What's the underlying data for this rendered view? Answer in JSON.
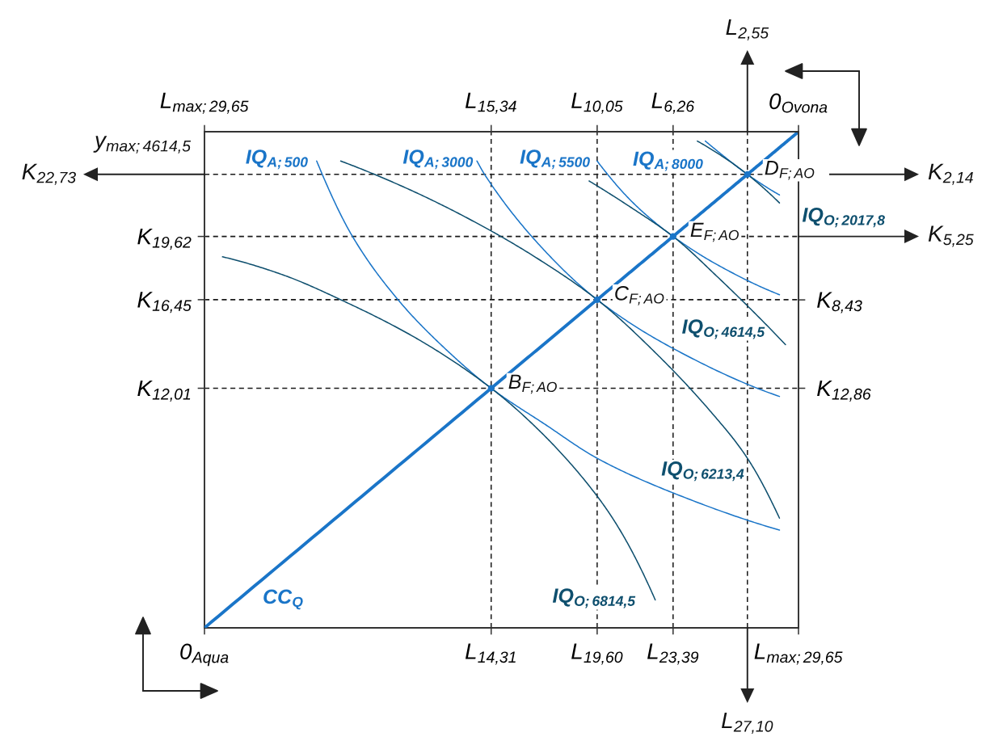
{
  "chart_data": {
    "type": "line",
    "ylabel": "y$_{max;4614,5}$",
    "xlim": [
      0,
      29.65
    ],
    "ylim": [
      0,
      24.87
    ],
    "x2lim": [
      29.65,
      0
    ],
    "y2lim": [
      24.87,
      0
    ],
    "xticks": [
      {
        "value": 0,
        "label": "0$_{Aqua}$"
      },
      {
        "value": 14.31,
        "label": "L$_{14,31}$"
      },
      {
        "value": 19.6,
        "label": "L$_{19,60}$"
      },
      {
        "value": 23.39,
        "label": "L$_{23,39}$"
      },
      {
        "value": 29.65,
        "label": "L$_{max;29,65}$"
      }
    ],
    "x2ticks": [
      {
        "value": 29.65,
        "label": "L$_{max;29,65}$"
      },
      {
        "value": 15.34,
        "label": "L$_{15,34}$"
      },
      {
        "value": 10.05,
        "label": "L$_{10,05}$"
      },
      {
        "value": 6.26,
        "label": "L$_{6,26}$"
      },
      {
        "value": 0,
        "label": "0$_{Ovona}$"
      }
    ],
    "yticks": [
      {
        "value": 12.01,
        "label": "K$_{12,01}$"
      },
      {
        "value": 16.45,
        "label": "K$_{16,45}$"
      },
      {
        "value": 19.62,
        "label": "K$_{19,62}$"
      }
    ],
    "y2ticks": [
      {
        "value": 12.86,
        "label": "K$_{12,86}$"
      },
      {
        "value": 8.43,
        "label": "K$_{8,43}$"
      }
    ],
    "series": [
      {
        "name": "CC$_{Q}$",
        "color": "#1a75c8",
        "x": [
          0,
          14.31,
          19.6,
          23.39,
          27.1,
          29.65
        ],
        "values": [
          0,
          12.01,
          16.45,
          19.62,
          22.73,
          24.87
        ]
      },
      {
        "type": "scatter",
        "color": "#1a75c8",
        "marker": "circle",
        "x": [
          14.31,
          19.6,
          23.39,
          27.1
        ],
        "values": [
          12.01,
          16.45,
          19.62,
          22.73
        ]
      },
      {
        "name": "IQ$_{A;500}$",
        "color": "#1a75c8",
        "x": [
          5.6,
          7.4,
          9.7,
          11.9,
          14.31,
          17.0,
          19.6,
          23.3,
          28.7
        ],
        "values": [
          23.4,
          19.6,
          16.4,
          14.1,
          12.01,
          10.2,
          8.5,
          6.8,
          4.9
        ]
      },
      {
        "name": "IQ$_{A;3000}$",
        "color": "#1a75c8",
        "x": [
          13.6,
          14.0,
          16.8,
          19.6,
          23.4,
          28.7
        ],
        "values": [
          23.4,
          22.7,
          19.1,
          16.45,
          14.0,
          11.6
        ]
      },
      {
        "name": "IQ$_{A;5500}$",
        "color": "#1a75c8",
        "x": [
          19.6,
          21.4,
          23.39,
          25.6,
          28.7
        ],
        "values": [
          23.4,
          21.3,
          19.62,
          18.2,
          16.7
        ]
      },
      {
        "name": "IQ$_{A;8000}$",
        "color": "#1a75c8",
        "x": [
          25.0,
          26.1,
          27.1,
          28.7
        ],
        "values": [
          24.4,
          23.5,
          22.73,
          21.7
        ]
      },
      {
        "name": "IQ$_{O;6814,5}$",
        "color": "#0e4f6e",
        "x": [
          0.9,
          3.9,
          6.9,
          10.6,
          14.31,
          17.0,
          19.6,
          20.8,
          22.5
        ],
        "values": [
          18.6,
          17.7,
          16.4,
          14.5,
          12.01,
          9.6,
          6.6,
          4.8,
          1.4
        ]
      },
      {
        "name": "IQ$_{O;6213,4}$",
        "color": "#0e4f6e",
        "x": [
          6.8,
          10.6,
          14.3,
          16.8,
          19.6,
          22.6,
          25.3,
          27.1,
          28.7
        ],
        "values": [
          23.4,
          21.8,
          19.9,
          18.4,
          16.45,
          13.7,
          10.8,
          8.5,
          5.5
        ]
      },
      {
        "name": "IQ$_{O;4614,5}$",
        "color": "#0e4f6e",
        "x": [
          19.2,
          21.4,
          23.39,
          25.6,
          29.0
        ],
        "values": [
          22.4,
          21.0,
          19.62,
          17.6,
          14.2
        ]
      },
      {
        "name": "IQ$_{O;2017,8}$",
        "color": "#0e4f6e",
        "x": [
          24.6,
          25.9,
          27.1,
          28.7
        ],
        "values": [
          24.4,
          23.6,
          22.73,
          21.3
        ]
      }
    ],
    "ref_lines": [
      {
        "axis": "x",
        "value": 14.31,
        "line_style": "dashed",
        "color": "#1a1a1a"
      },
      {
        "axis": "x",
        "value": 19.6,
        "line_style": "dashed",
        "color": "#1a1a1a"
      },
      {
        "axis": "x",
        "value": 23.39,
        "line_style": "dashed",
        "color": "#1a1a1a"
      },
      {
        "axis": "x",
        "value": 27.1,
        "line_style": "dashed",
        "color": "#1a1a1a"
      },
      {
        "axis": "y",
        "value": 12.01,
        "line_style": "dashed",
        "color": "#1a1a1a"
      },
      {
        "axis": "y",
        "value": 16.45,
        "line_style": "dashed",
        "color": "#1a1a1a"
      },
      {
        "axis": "y",
        "value": 19.62,
        "line_style": "dashed",
        "color": "#1a1a1a"
      },
      {
        "axis": "y",
        "value": 22.73,
        "line_style": "dashed",
        "color": "#1a1a1a"
      },
      {
        "axis": "x",
        "value": 27.1,
        "label": "L$_{27,10}$",
        "line_style": "solid",
        "color": "#222222"
      },
      {
        "axis": "x2",
        "value": 2.55,
        "label": "L$_{2,55}$",
        "line_style": "solid",
        "color": "#222222"
      },
      {
        "axis": "y",
        "value": 22.73,
        "label": "K$_{22,73}$",
        "line_style": "solid",
        "color": "#222222"
      },
      {
        "axis": "y2",
        "value": 5.25,
        "label": "K$_{5,25}$",
        "line_style": "solid",
        "color": "#222222"
      },
      {
        "axis": "y2",
        "value": 2.14,
        "label": "K$_{2,14}$",
        "line_style": "solid",
        "color": "#222222"
      }
    ],
    "annotations": [
      {
        "text": "B$_{F;AO}$",
        "x": 14.31,
        "y": 12.01
      },
      {
        "text": "C$_{F;AO}$",
        "x": 19.6,
        "y": 16.45
      },
      {
        "text": "E$_{F;AO}$",
        "x": 23.39,
        "y": 19.62
      },
      {
        "text": "D$_{F;AO}$",
        "x": 27.1,
        "y": 22.73
      }
    ]
  }
}
